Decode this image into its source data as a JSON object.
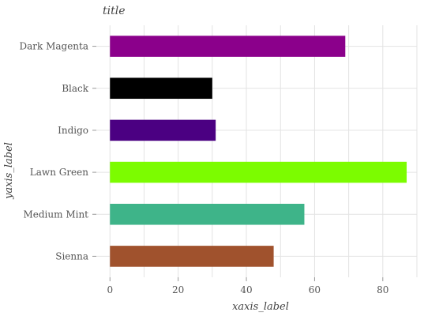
{
  "chart_data": {
    "type": "bar",
    "orientation": "horizontal",
    "title": "title",
    "xlabel": "xaxis_label",
    "ylabel": "yaxis_label",
    "categories": [
      "Sienna",
      "Medium Mint",
      "Lawn Green",
      "Indigo",
      "Black",
      "Dark Magenta"
    ],
    "values": [
      48,
      57,
      87,
      31,
      30,
      69
    ],
    "colors": [
      "#a0522d",
      "#3eb489",
      "#7cfc00",
      "#4b0082",
      "#000000",
      "#8b008b"
    ],
    "xlim": [
      -4,
      90
    ],
    "xticks": [
      0,
      20,
      40,
      60,
      80
    ],
    "tick_labels": [
      "0",
      "20",
      "40",
      "60",
      "80"
    ],
    "grid": true,
    "legend": "none"
  }
}
